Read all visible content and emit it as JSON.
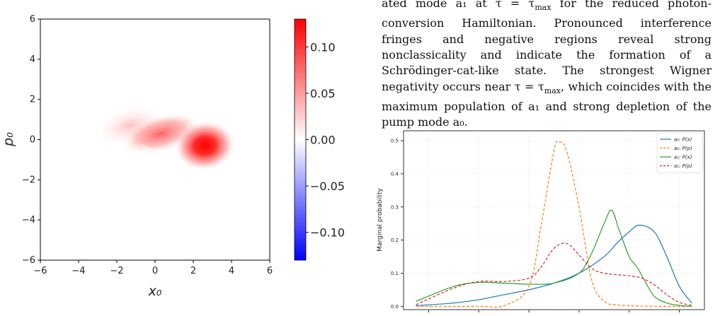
{
  "text": {
    "paragraph": [
      "ated mode a₁ at τ = τ",
      "max",
      " for the reduced photon-conversion Hamiltonian. Pronounced interference fringes and negative regions reveal strong nonclassicality and indicate the formation of a Schrödinger-cat-like state. The strongest Wigner negativity occurs near τ = τ",
      "max",
      ", which coincides with the maximum population of a₁ and strong depletion of the pump mode a₀."
    ]
  },
  "chart_data": [
    {
      "type": "heatmap",
      "xlabel": "x₀",
      "ylabel": "p₀",
      "xlim": [
        -6,
        6
      ],
      "ylim": [
        -6,
        6
      ],
      "xticks": [
        "−6",
        "−4",
        "−2",
        "0",
        "2",
        "4",
        "6"
      ],
      "yticks": [
        "−6",
        "−4",
        "−2",
        "0",
        "2",
        "4",
        "6"
      ],
      "colormap": "bwr",
      "colors": {
        "negative": "#0000ff",
        "zero": "#ffffff",
        "positive": "#ff0000"
      },
      "colorbar": {
        "range": [
          -0.13,
          0.13
        ],
        "ticks": [
          "0.10",
          "0.05",
          "0.00",
          "−0.05",
          "−0.10"
        ],
        "tick_values": [
          0.1,
          0.05,
          0.0,
          -0.05,
          -0.1
        ]
      },
      "blobs": [
        {
          "x": 2.6,
          "p": -0.3,
          "peak": 0.125
        },
        {
          "x": 0.3,
          "p": 0.3,
          "peak": 0.05
        },
        {
          "x": -1.3,
          "p": 0.7,
          "peak": 0.02
        },
        {
          "x": -0.3,
          "p": -0.55,
          "peak": -0.01
        }
      ]
    },
    {
      "type": "line",
      "ylabel": "Marginal probability",
      "yticks": [
        "0.0",
        "0.1",
        "0.2",
        "0.3",
        "0.4",
        "0.5"
      ],
      "ylim": [
        -0.01,
        0.53
      ],
      "xlim": [
        -6,
        6
      ],
      "grid": true,
      "legend_position": "top-right",
      "series": [
        {
          "name": "a₀: P(x)",
          "color": "#1f77b4",
          "dash": "solid",
          "x": [
            -5.5,
            -4,
            -3,
            -2,
            -1,
            0,
            1,
            2,
            2.5,
            3,
            3.4,
            4,
            4.5,
            5,
            5.5
          ],
          "y": [
            0.002,
            0.01,
            0.02,
            0.035,
            0.05,
            0.07,
            0.1,
            0.15,
            0.19,
            0.225,
            0.245,
            0.225,
            0.15,
            0.06,
            0.01
          ]
        },
        {
          "name": "a₀: P(p)",
          "color": "#ff7f0e",
          "dash": "dashed",
          "x": [
            -5.5,
            -3,
            -2,
            -1,
            -0.5,
            0,
            0.2,
            0.5,
            1,
            1.5,
            2,
            2.5,
            3,
            4,
            5.5
          ],
          "y": [
            0,
            0,
            0.002,
            0.06,
            0.25,
            0.47,
            0.495,
            0.47,
            0.3,
            0.08,
            0.015,
            0.005,
            0.002,
            0,
            0
          ]
        },
        {
          "name": "a₁: P(x)",
          "color": "#2ca02c",
          "dash": "solid",
          "x": [
            -5.5,
            -4,
            -3,
            -2,
            -1,
            0,
            1,
            1.5,
            2,
            2.3,
            2.6,
            3,
            3.3,
            3.6,
            4,
            4.5,
            5,
            5.5
          ],
          "y": [
            0.015,
            0.06,
            0.072,
            0.07,
            0.067,
            0.07,
            0.1,
            0.16,
            0.25,
            0.29,
            0.23,
            0.15,
            0.12,
            0.08,
            0.03,
            0.01,
            0.003,
            0
          ]
        },
        {
          "name": "a₁: P(p)",
          "color": "#d62728",
          "dash": "dashed",
          "x": [
            -5.5,
            -4,
            -3,
            -2,
            -1,
            -0.5,
            0,
            0.5,
            1,
            1.5,
            2,
            3,
            3.5,
            4,
            4.5,
            5,
            5.5
          ],
          "y": [
            0.005,
            0.055,
            0.075,
            0.075,
            0.085,
            0.12,
            0.175,
            0.19,
            0.155,
            0.115,
            0.1,
            0.092,
            0.085,
            0.065,
            0.035,
            0.012,
            0.003
          ]
        }
      ]
    }
  ]
}
